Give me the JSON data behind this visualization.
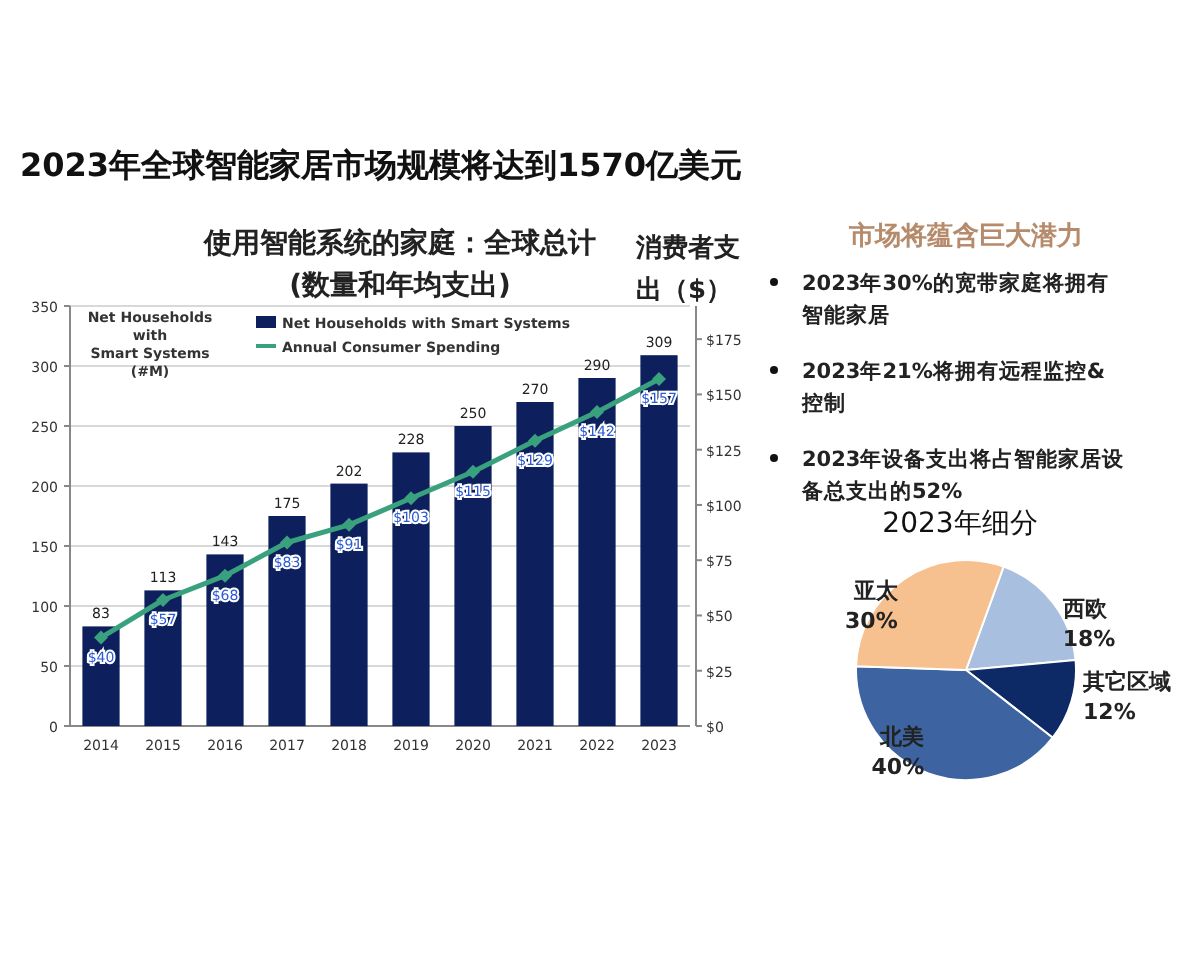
{
  "chart_data": [
    {
      "type": "bar",
      "title": "2023年全球智能家居市场规模将达到1570亿美元",
      "subtitle": "使用智能系统的家庭：全球总计\n(数量和年均支出)",
      "ylabel": "Net Households with Smart Systems (#M)",
      "y2label": "消费者支出（$）",
      "categories": [
        "2014",
        "2015",
        "2016",
        "2017",
        "2018",
        "2019",
        "2020",
        "2021",
        "2022",
        "2023"
      ],
      "series": [
        {
          "name": "Net Households with Smart Systems",
          "type": "bar",
          "color": "#0d1f5c",
          "values": [
            83,
            113,
            143,
            175,
            202,
            228,
            250,
            270,
            290,
            309
          ],
          "value_labels": [
            "83",
            "113",
            "143",
            "175",
            "202",
            "228",
            "250",
            "270",
            "290",
            "309"
          ]
        },
        {
          "name": "Annual Consumer Spending",
          "type": "line",
          "axis": "y2",
          "color": "#3aa17e",
          "values": [
            40,
            57,
            68,
            83,
            91,
            103,
            115,
            129,
            142,
            157
          ],
          "value_labels": [
            "$40",
            "$57",
            "$68",
            "$83",
            "$91",
            "$103",
            "$115",
            "$129",
            "$142",
            "$157"
          ]
        }
      ],
      "ylim": [
        0,
        350
      ],
      "yticks": [
        0,
        50,
        100,
        150,
        200,
        250,
        300,
        350
      ],
      "y2lim": [
        0,
        190
      ],
      "y2ticks": [
        {
          "value": 0,
          "label": "$0"
        },
        {
          "value": 25,
          "label": "$25"
        },
        {
          "value": 50,
          "label": "$50"
        },
        {
          "value": 75,
          "label": "$75"
        },
        {
          "value": 100,
          "label": "$100"
        },
        {
          "value": 125,
          "label": "$125"
        },
        {
          "value": 150,
          "label": "$150"
        },
        {
          "value": 175,
          "label": "$175"
        }
      ],
      "grid": "y",
      "legend": "top",
      "marker": "diamond"
    },
    {
      "type": "other",
      "title": "市场将蕴含巨大潜力",
      "annotations": [
        "2023年30%的宽带家庭将拥有智能家居",
        "2023年21%将拥有远程监控&控制",
        "2023年设备支出将占智能家居设备总支出的52%"
      ]
    },
    {
      "type": "pie",
      "title": "2023年细分",
      "categories": [
        "西欧",
        "其它区域",
        "北美",
        "亚太"
      ],
      "values": [
        18,
        12,
        40,
        30
      ],
      "colors": [
        "#a9bfe0",
        "#0d2a66",
        "#3d64a0",
        "#f6c08f"
      ],
      "value_labels": [
        "18%",
        "12%",
        "40%",
        "30%"
      ]
    }
  ]
}
